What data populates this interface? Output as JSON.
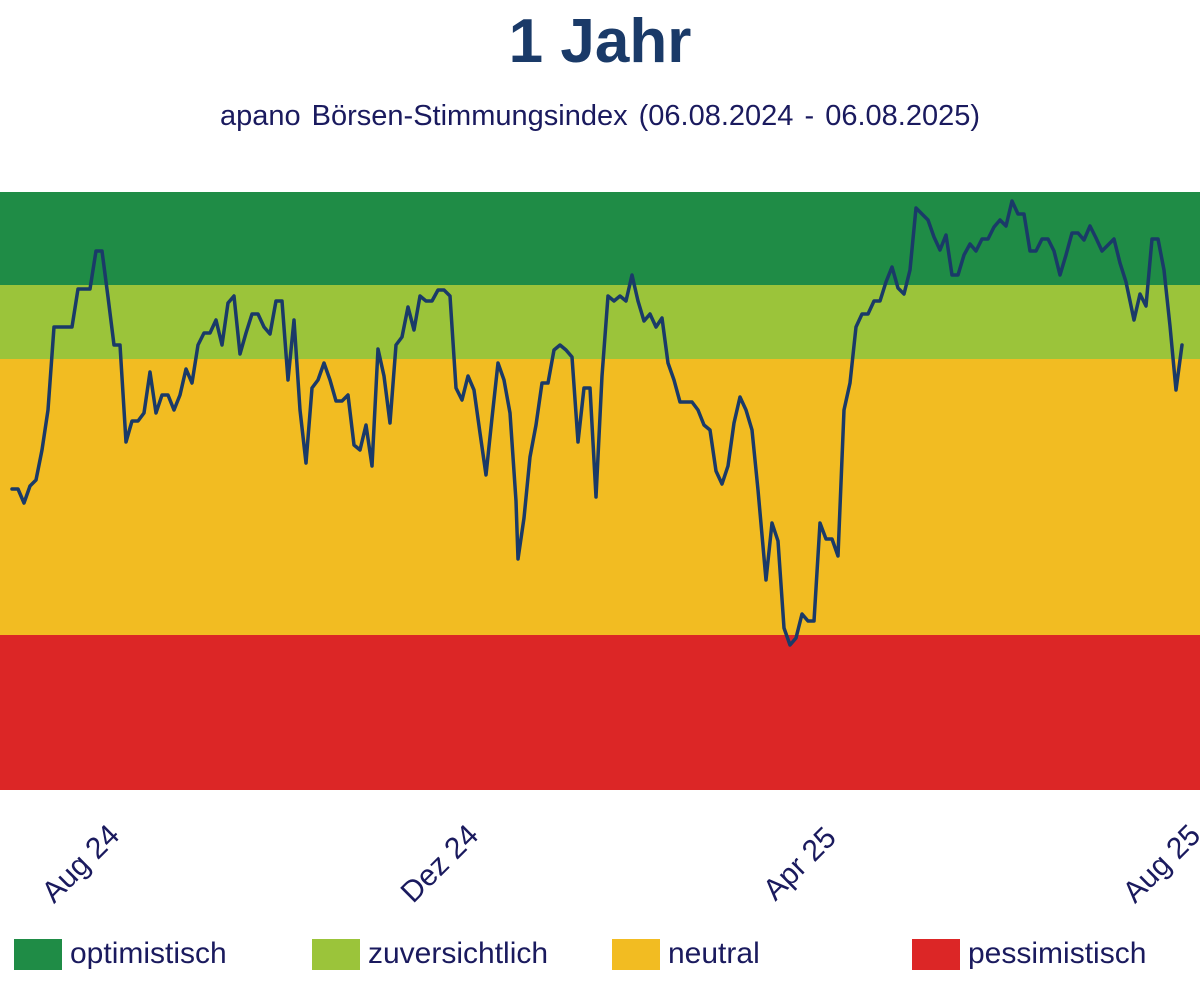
{
  "colors": {
    "title": "#1a3a68",
    "text": "#1a1a5e",
    "line": "#1a3a68",
    "optimistisch": "#1f8c46",
    "zuversichtlich": "#9bc43a",
    "neutral": "#f2bc22",
    "pessimistisch": "#dc2626"
  },
  "chart_data": {
    "type": "line",
    "title": "1 Jahr",
    "subtitle": "apano Börsen-Stimmungsindex (06.08.2024 - 06.08.2025)",
    "x_ticks": [
      "Aug 24",
      "Dez 24",
      "Apr 25",
      "Aug 25"
    ],
    "x_range": [
      "2024-08-06",
      "2025-08-06"
    ],
    "x_tick_dates": [
      "2024-08-01",
      "2024-12-01",
      "2025-04-01",
      "2025-08-01"
    ],
    "zones": [
      {
        "name": "optimistisch",
        "color": "#1f8c46"
      },
      {
        "name": "zuversichtlich",
        "color": "#9bc43a"
      },
      {
        "name": "neutral",
        "color": "#f2bc22"
      },
      {
        "name": "pessimistisch",
        "color": "#dc2626"
      }
    ],
    "legend_position": "bottom",
    "grid": false,
    "series": [
      {
        "points": [
          [
            12,
            489
          ],
          [
            18,
            489
          ],
          [
            24,
            503
          ],
          [
            30,
            486
          ],
          [
            36,
            480
          ],
          [
            42,
            450
          ],
          [
            48,
            410
          ],
          [
            54,
            327
          ],
          [
            60,
            327
          ],
          [
            66,
            327
          ],
          [
            72,
            327
          ],
          [
            78,
            289
          ],
          [
            84,
            289
          ],
          [
            90,
            289
          ],
          [
            96,
            251
          ],
          [
            102,
            251
          ],
          [
            108,
            297
          ],
          [
            114,
            345
          ],
          [
            120,
            345
          ],
          [
            126,
            442
          ],
          [
            132,
            421
          ],
          [
            138,
            421
          ],
          [
            144,
            413
          ],
          [
            150,
            372
          ],
          [
            156,
            413
          ],
          [
            162,
            395
          ],
          [
            168,
            395
          ],
          [
            174,
            410
          ],
          [
            180,
            395
          ],
          [
            186,
            369
          ],
          [
            192,
            383
          ],
          [
            198,
            345
          ],
          [
            204,
            333
          ],
          [
            210,
            333
          ],
          [
            216,
            320
          ],
          [
            222,
            345
          ],
          [
            228,
            303
          ],
          [
            234,
            296
          ],
          [
            240,
            354
          ],
          [
            246,
            333
          ],
          [
            252,
            314
          ],
          [
            258,
            314
          ],
          [
            264,
            327
          ],
          [
            270,
            334
          ],
          [
            276,
            301
          ],
          [
            282,
            301
          ],
          [
            288,
            380
          ],
          [
            294,
            320
          ],
          [
            300,
            410
          ],
          [
            306,
            463
          ],
          [
            312,
            388
          ],
          [
            318,
            380
          ],
          [
            324,
            363
          ],
          [
            330,
            380
          ],
          [
            336,
            401
          ],
          [
            342,
            401
          ],
          [
            348,
            395
          ],
          [
            354,
            445
          ],
          [
            360,
            450
          ],
          [
            366,
            425
          ],
          [
            372,
            466
          ],
          [
            378,
            349
          ],
          [
            384,
            376
          ],
          [
            390,
            423
          ],
          [
            396,
            345
          ],
          [
            402,
            337
          ],
          [
            408,
            307
          ],
          [
            414,
            330
          ],
          [
            420,
            296
          ],
          [
            426,
            301
          ],
          [
            432,
            301
          ],
          [
            438,
            290
          ],
          [
            444,
            290
          ],
          [
            450,
            296
          ],
          [
            456,
            388
          ],
          [
            462,
            400
          ],
          [
            468,
            376
          ],
          [
            474,
            390
          ],
          [
            480,
            433
          ],
          [
            486,
            475
          ],
          [
            492,
            418
          ],
          [
            498,
            363
          ],
          [
            504,
            380
          ],
          [
            510,
            413
          ],
          [
            516,
            501
          ],
          [
            518,
            559
          ],
          [
            524,
            518
          ],
          [
            530,
            457
          ],
          [
            536,
            425
          ],
          [
            542,
            383
          ],
          [
            548,
            383
          ],
          [
            554,
            350
          ],
          [
            560,
            345
          ],
          [
            566,
            350
          ],
          [
            572,
            357
          ],
          [
            578,
            442
          ],
          [
            584,
            388
          ],
          [
            590,
            388
          ],
          [
            596,
            497
          ],
          [
            602,
            376
          ],
          [
            608,
            296
          ],
          [
            614,
            301
          ],
          [
            620,
            296
          ],
          [
            626,
            301
          ],
          [
            632,
            275
          ],
          [
            638,
            301
          ],
          [
            644,
            321
          ],
          [
            650,
            314
          ],
          [
            656,
            327
          ],
          [
            662,
            318
          ],
          [
            668,
            363
          ],
          [
            674,
            380
          ],
          [
            680,
            402
          ],
          [
            686,
            402
          ],
          [
            692,
            402
          ],
          [
            698,
            410
          ],
          [
            704,
            425
          ],
          [
            710,
            430
          ],
          [
            716,
            471
          ],
          [
            722,
            484
          ],
          [
            728,
            466
          ],
          [
            734,
            423
          ],
          [
            740,
            397
          ],
          [
            746,
            410
          ],
          [
            752,
            430
          ],
          [
            758,
            490
          ],
          [
            766,
            580
          ],
          [
            772,
            523
          ],
          [
            778,
            541
          ],
          [
            784,
            628
          ],
          [
            790,
            645
          ],
          [
            796,
            638
          ],
          [
            802,
            614
          ],
          [
            808,
            621
          ],
          [
            814,
            621
          ],
          [
            820,
            523
          ],
          [
            826,
            539
          ],
          [
            832,
            539
          ],
          [
            838,
            556
          ],
          [
            844,
            410
          ],
          [
            850,
            383
          ],
          [
            856,
            327
          ],
          [
            862,
            314
          ],
          [
            868,
            314
          ],
          [
            874,
            301
          ],
          [
            880,
            301
          ],
          [
            886,
            282
          ],
          [
            892,
            267
          ],
          [
            898,
            288
          ],
          [
            904,
            294
          ],
          [
            910,
            270
          ],
          [
            916,
            208
          ],
          [
            922,
            214
          ],
          [
            928,
            220
          ],
          [
            934,
            237
          ],
          [
            940,
            250
          ],
          [
            946,
            235
          ],
          [
            952,
            275
          ],
          [
            958,
            275
          ],
          [
            964,
            255
          ],
          [
            970,
            244
          ],
          [
            976,
            251
          ],
          [
            982,
            239
          ],
          [
            988,
            239
          ],
          [
            994,
            227
          ],
          [
            1000,
            220
          ],
          [
            1006,
            226
          ],
          [
            1012,
            201
          ],
          [
            1018,
            214
          ],
          [
            1024,
            214
          ],
          [
            1030,
            251
          ],
          [
            1036,
            251
          ],
          [
            1042,
            239
          ],
          [
            1048,
            239
          ],
          [
            1054,
            251
          ],
          [
            1060,
            275
          ],
          [
            1066,
            255
          ],
          [
            1072,
            233
          ],
          [
            1078,
            233
          ],
          [
            1084,
            240
          ],
          [
            1090,
            226
          ],
          [
            1096,
            238
          ],
          [
            1102,
            251
          ],
          [
            1108,
            245
          ],
          [
            1114,
            239
          ],
          [
            1120,
            263
          ],
          [
            1126,
            282
          ],
          [
            1134,
            320
          ],
          [
            1140,
            294
          ],
          [
            1146,
            306
          ],
          [
            1152,
            239
          ],
          [
            1158,
            239
          ],
          [
            1164,
            270
          ],
          [
            1170,
            326
          ],
          [
            1176,
            390
          ],
          [
            1182,
            345
          ]
        ]
      }
    ]
  }
}
